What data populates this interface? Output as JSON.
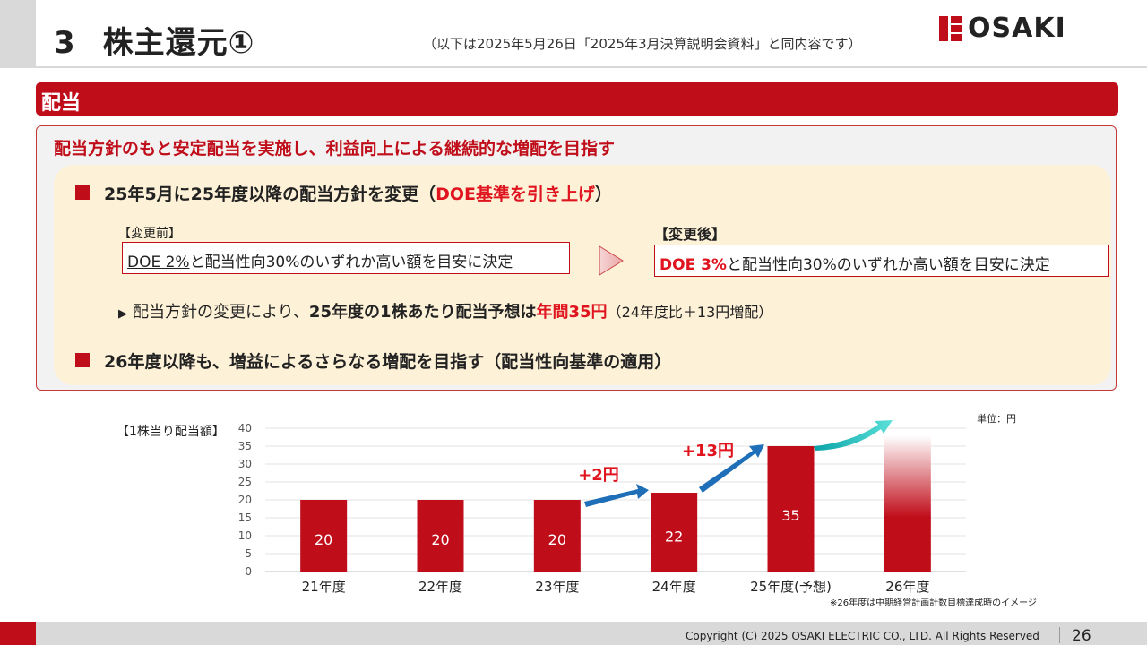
{
  "header": {
    "section_number": "3",
    "title": "株主還元①",
    "subtitle": "（以下は2025年5月26日「2025年3月決算説明会資料」と同内容です）",
    "logo_text": "OSAKI",
    "brand_color": "#c00d1a"
  },
  "section": {
    "label": "配当"
  },
  "content": {
    "headline": "配当方針のもと安定配当を実施し、利益向上による継続的な増配を目指す",
    "bullet1": {
      "text": "25年5月に25年度以降の配当方針を変更（",
      "highlight": "DOE基準を引き上げ",
      "text_end": "）"
    },
    "before": {
      "label": "【変更前】",
      "doe": "DOE 2%",
      "rest": "と配当性向30%のいずれか高い額を目安に決定"
    },
    "after": {
      "label": "【変更後】",
      "doe": "DOE 3%",
      "rest": "と配当性向30%のいずれか高い額を目安に決定"
    },
    "sub": {
      "marker": "▶",
      "text1": "配当方針の変更により、",
      "bold": "25年度の1株あたり配当予想は",
      "highlight": "年間35円",
      "note": "（24年度比＋13円増配）"
    },
    "bullet2": {
      "text": "26年度以降も、増益によるさらなる増配を目指す（配当性向基準の適用）"
    }
  },
  "chart_data": {
    "type": "bar",
    "ylabel": "【1株当り配当額】",
    "unit": "単位：円",
    "categories": [
      "21年度",
      "22年度",
      "23年度",
      "24年度",
      "25年度(予想)",
      "26年度"
    ],
    "values": [
      20,
      20,
      20,
      22,
      35,
      null
    ],
    "value_labels": [
      "20",
      "20",
      "20",
      "22",
      "35",
      ""
    ],
    "ylim": [
      0,
      40
    ],
    "yticks": [
      0,
      5,
      10,
      15,
      20,
      25,
      30,
      35,
      40
    ],
    "grid": true,
    "annotations": [
      "+2円",
      "+13円"
    ],
    "bar_color": "#c00d1a",
    "footnote": "※26年度は中期経営計画計数目標達成時のイメージ"
  },
  "footer": {
    "copyright": "Copyright (C) 2025 OSAKI ELECTRIC CO., LTD. All Rights Reserved",
    "page_number": "26"
  }
}
